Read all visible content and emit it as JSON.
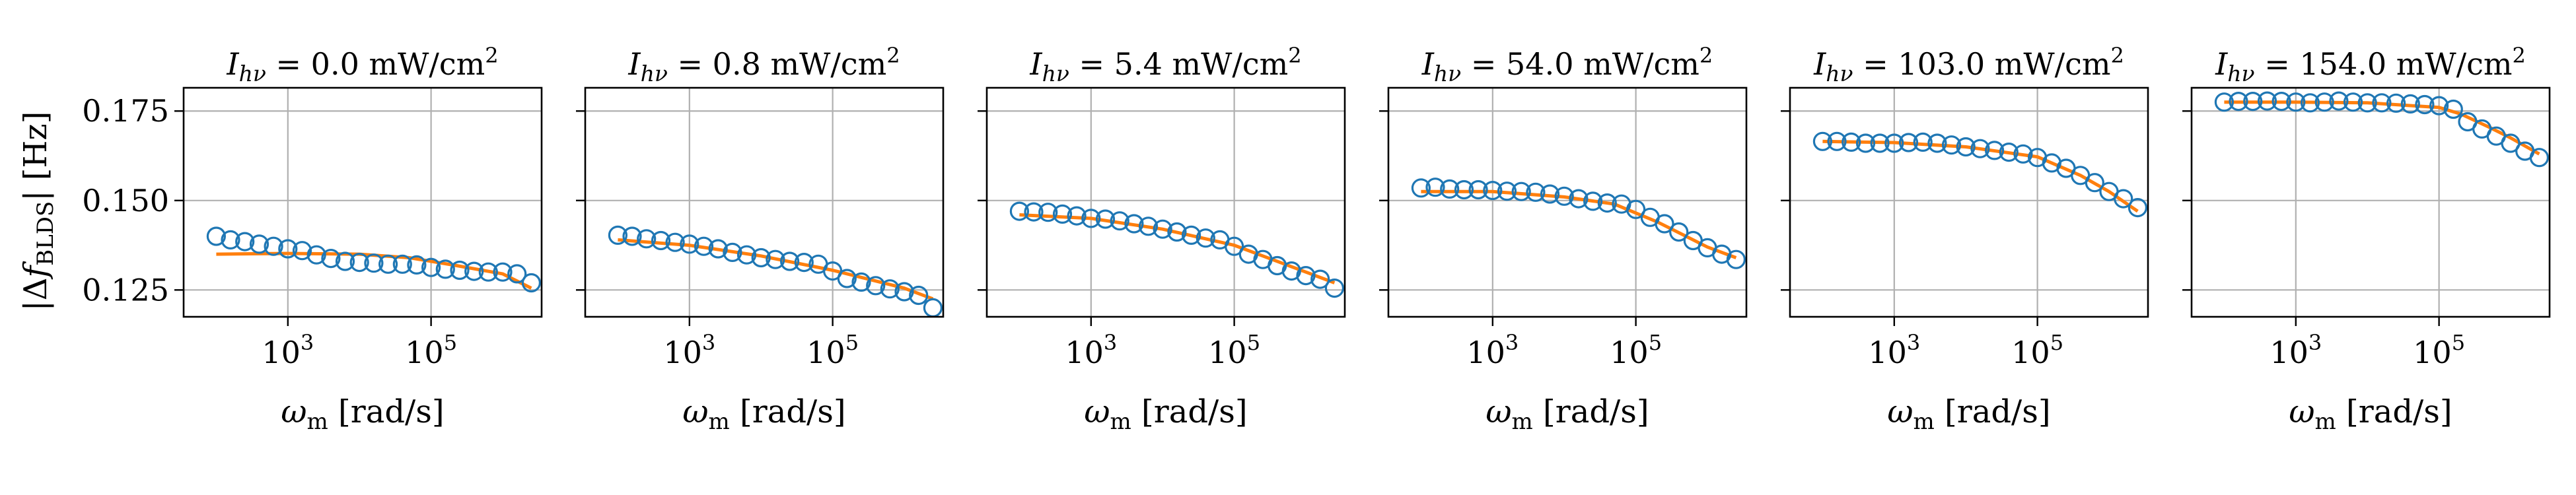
{
  "colors": {
    "data_marker": "#1f77b4",
    "fit_line": "#ff7f0e",
    "grid": "#b0b0b0"
  },
  "figure": {
    "ylabel": {
      "prefix": "|Δ",
      "var": "f",
      "sub": "BLDS",
      "suffix": "| [Hz]"
    },
    "xlabel": {
      "var": "ω",
      "sub": "m",
      "suffix": " [rad/s]"
    },
    "yticks": [
      "0.125",
      "0.150",
      "0.175"
    ],
    "xtick_base": "10",
    "xtick_exps": [
      "3",
      "5"
    ]
  },
  "chart_data": [
    {
      "type": "scatter",
      "title": {
        "var": "I",
        "sub": "hν",
        "value": " = 0.0 mW/cm",
        "sup": "2"
      },
      "xlabel": "ωm [rad/s]",
      "ylabel": "|ΔfBLDS| [Hz]",
      "x_scale": "log",
      "xlim": [
        35.0,
        3500000.0
      ],
      "ylim": [
        0.1175,
        0.1815
      ],
      "grid": true,
      "series": [
        {
          "kind": "markers",
          "x": [
            100,
            158,
            251,
            398,
            631,
            1000,
            1585,
            2512,
            3981,
            6310,
            10000,
            15849,
            25119,
            39811,
            63096,
            100000,
            158489,
            251189,
            398107,
            630957,
            1000000,
            1584893,
            2511886
          ],
          "y": [
            0.14,
            0.139,
            0.1385,
            0.1378,
            0.1372,
            0.1365,
            0.136,
            0.1348,
            0.1338,
            0.133,
            0.1327,
            0.1325,
            0.1322,
            0.1322,
            0.132,
            0.1313,
            0.1308,
            0.1305,
            0.1302,
            0.13,
            0.13,
            0.1295,
            0.127
          ]
        },
        {
          "kind": "line",
          "x": [
            100,
            1000,
            10000,
            50000,
            200000,
            1000000,
            2511886
          ],
          "y": [
            0.135,
            0.1352,
            0.135,
            0.134,
            0.132,
            0.1295,
            0.1255
          ]
        }
      ]
    },
    {
      "type": "scatter",
      "title": {
        "var": "I",
        "sub": "hν",
        "value": " = 0.8 mW/cm",
        "sup": "2"
      },
      "xlabel": "ωm [rad/s]",
      "ylabel": "|ΔfBLDS| [Hz]",
      "x_scale": "log",
      "xlim": [
        35.0,
        3500000.0
      ],
      "ylim": [
        0.1175,
        0.1815
      ],
      "grid": true,
      "series": [
        {
          "kind": "markers",
          "x": [
            100,
            158,
            251,
            398,
            631,
            1000,
            1585,
            2512,
            3981,
            6310,
            10000,
            15849,
            25119,
            39811,
            63096,
            100000,
            158489,
            251189,
            398107,
            630957,
            1000000,
            1584893,
            2511886
          ],
          "y": [
            0.1403,
            0.14,
            0.1393,
            0.1388,
            0.1383,
            0.1378,
            0.1372,
            0.1365,
            0.1355,
            0.1348,
            0.134,
            0.1335,
            0.133,
            0.1327,
            0.1322,
            0.1303,
            0.1282,
            0.1272,
            0.1262,
            0.1253,
            0.1245,
            0.1235,
            0.12
          ]
        },
        {
          "kind": "line",
          "x": [
            100,
            1000,
            10000,
            100000,
            1000000,
            2511886
          ],
          "y": [
            0.139,
            0.1375,
            0.1345,
            0.1305,
            0.1255,
            0.1225
          ]
        }
      ]
    },
    {
      "type": "scatter",
      "title": {
        "var": "I",
        "sub": "hν",
        "value": " = 5.4 mW/cm",
        "sup": "2"
      },
      "xlabel": "ωm [rad/s]",
      "ylabel": "|ΔfBLDS| [Hz]",
      "x_scale": "log",
      "xlim": [
        35.0,
        3500000.0
      ],
      "ylim": [
        0.1175,
        0.1815
      ],
      "grid": true,
      "series": [
        {
          "kind": "markers",
          "x": [
            100,
            158,
            251,
            398,
            631,
            1000,
            1585,
            2512,
            3981,
            6310,
            10000,
            15849,
            25119,
            39811,
            63096,
            100000,
            158489,
            251189,
            398107,
            630957,
            1000000,
            1584893,
            2511886
          ],
          "y": [
            0.147,
            0.1468,
            0.1467,
            0.1462,
            0.1457,
            0.145,
            0.1448,
            0.1443,
            0.1435,
            0.1428,
            0.142,
            0.1412,
            0.1403,
            0.1395,
            0.139,
            0.1372,
            0.135,
            0.1335,
            0.1318,
            0.1303,
            0.129,
            0.128,
            0.1255
          ]
        },
        {
          "kind": "line",
          "x": [
            100,
            1000,
            10000,
            100000,
            1000000,
            2511886
          ],
          "y": [
            0.146,
            0.145,
            0.142,
            0.1375,
            0.13,
            0.127
          ]
        }
      ]
    },
    {
      "type": "scatter",
      "title": {
        "var": "I",
        "sub": "hν",
        "value": " = 54.0 mW/cm",
        "sup": "2"
      },
      "xlabel": "ωm [rad/s]",
      "ylabel": "|ΔfBLDS| [Hz]",
      "x_scale": "log",
      "xlim": [
        35.0,
        3500000.0
      ],
      "ylim": [
        0.1175,
        0.1815
      ],
      "grid": true,
      "series": [
        {
          "kind": "markers",
          "x": [
            100,
            158,
            251,
            398,
            631,
            1000,
            1585,
            2512,
            3981,
            6310,
            10000,
            15849,
            25119,
            39811,
            63096,
            100000,
            158489,
            251189,
            398107,
            630957,
            1000000,
            1584893,
            2511886
          ],
          "y": [
            0.1535,
            0.1537,
            0.1532,
            0.153,
            0.153,
            0.1528,
            0.1526,
            0.1525,
            0.1523,
            0.1518,
            0.1512,
            0.1505,
            0.1498,
            0.1493,
            0.149,
            0.1475,
            0.1453,
            0.1435,
            0.1412,
            0.1388,
            0.1368,
            0.135,
            0.1335
          ]
        },
        {
          "kind": "line",
          "x": [
            100,
            1000,
            10000,
            50000,
            200000,
            1000000,
            2511886
          ],
          "y": [
            0.1525,
            0.1525,
            0.151,
            0.149,
            0.144,
            0.137,
            0.134
          ]
        }
      ]
    },
    {
      "type": "scatter",
      "title": {
        "var": "I",
        "sub": "hν",
        "value": " = 103.0 mW/cm",
        "sup": "2"
      },
      "xlabel": "ωm [rad/s]",
      "ylabel": "|ΔfBLDS| [Hz]",
      "x_scale": "log",
      "xlim": [
        35.0,
        3500000.0
      ],
      "ylim": [
        0.1175,
        0.1815
      ],
      "grid": true,
      "series": [
        {
          "kind": "markers",
          "x": [
            100,
            158,
            251,
            398,
            631,
            1000,
            1585,
            2512,
            3981,
            6310,
            10000,
            15849,
            25119,
            39811,
            63096,
            100000,
            158489,
            251189,
            398107,
            630957,
            1000000,
            1584893,
            2511886
          ],
          "y": [
            0.1665,
            0.1665,
            0.1663,
            0.166,
            0.166,
            0.166,
            0.1662,
            0.1663,
            0.166,
            0.1655,
            0.165,
            0.1645,
            0.164,
            0.1635,
            0.163,
            0.162,
            0.1605,
            0.159,
            0.157,
            0.155,
            0.1525,
            0.1505,
            0.148
          ]
        },
        {
          "kind": "line",
          "x": [
            100,
            1000,
            10000,
            100000,
            400000,
            1000000,
            2511886
          ],
          "y": [
            0.1665,
            0.1662,
            0.165,
            0.1622,
            0.157,
            0.1525,
            0.147
          ]
        }
      ]
    },
    {
      "type": "scatter",
      "title": {
        "var": "I",
        "sub": "hν",
        "value": " = 154.0 mW/cm",
        "sup": "2"
      },
      "xlabel": "ωm [rad/s]",
      "ylabel": "|ΔfBLDS| [Hz]",
      "x_scale": "log",
      "xlim": [
        35.0,
        3500000.0
      ],
      "ylim": [
        0.1175,
        0.1815
      ],
      "grid": true,
      "series": [
        {
          "kind": "markers",
          "x": [
            100,
            158,
            251,
            398,
            631,
            1000,
            1585,
            2512,
            3981,
            6310,
            10000,
            15849,
            25119,
            39811,
            63096,
            100000,
            158489,
            251189,
            398107,
            630957,
            1000000,
            1584893,
            2511886
          ],
          "y": [
            0.1775,
            0.1777,
            0.1777,
            0.1778,
            0.1777,
            0.1775,
            0.1773,
            0.1775,
            0.1778,
            0.1775,
            0.1773,
            0.1773,
            0.1772,
            0.177,
            0.1768,
            0.1765,
            0.1755,
            0.172,
            0.17,
            0.168,
            0.166,
            0.1638,
            0.162
          ]
        },
        {
          "kind": "line",
          "x": [
            100,
            1000,
            10000,
            100000,
            200000,
            500000,
            1000000,
            2511886
          ],
          "y": [
            0.1775,
            0.1775,
            0.1773,
            0.176,
            0.1742,
            0.1705,
            0.1675,
            0.163
          ]
        }
      ]
    }
  ]
}
